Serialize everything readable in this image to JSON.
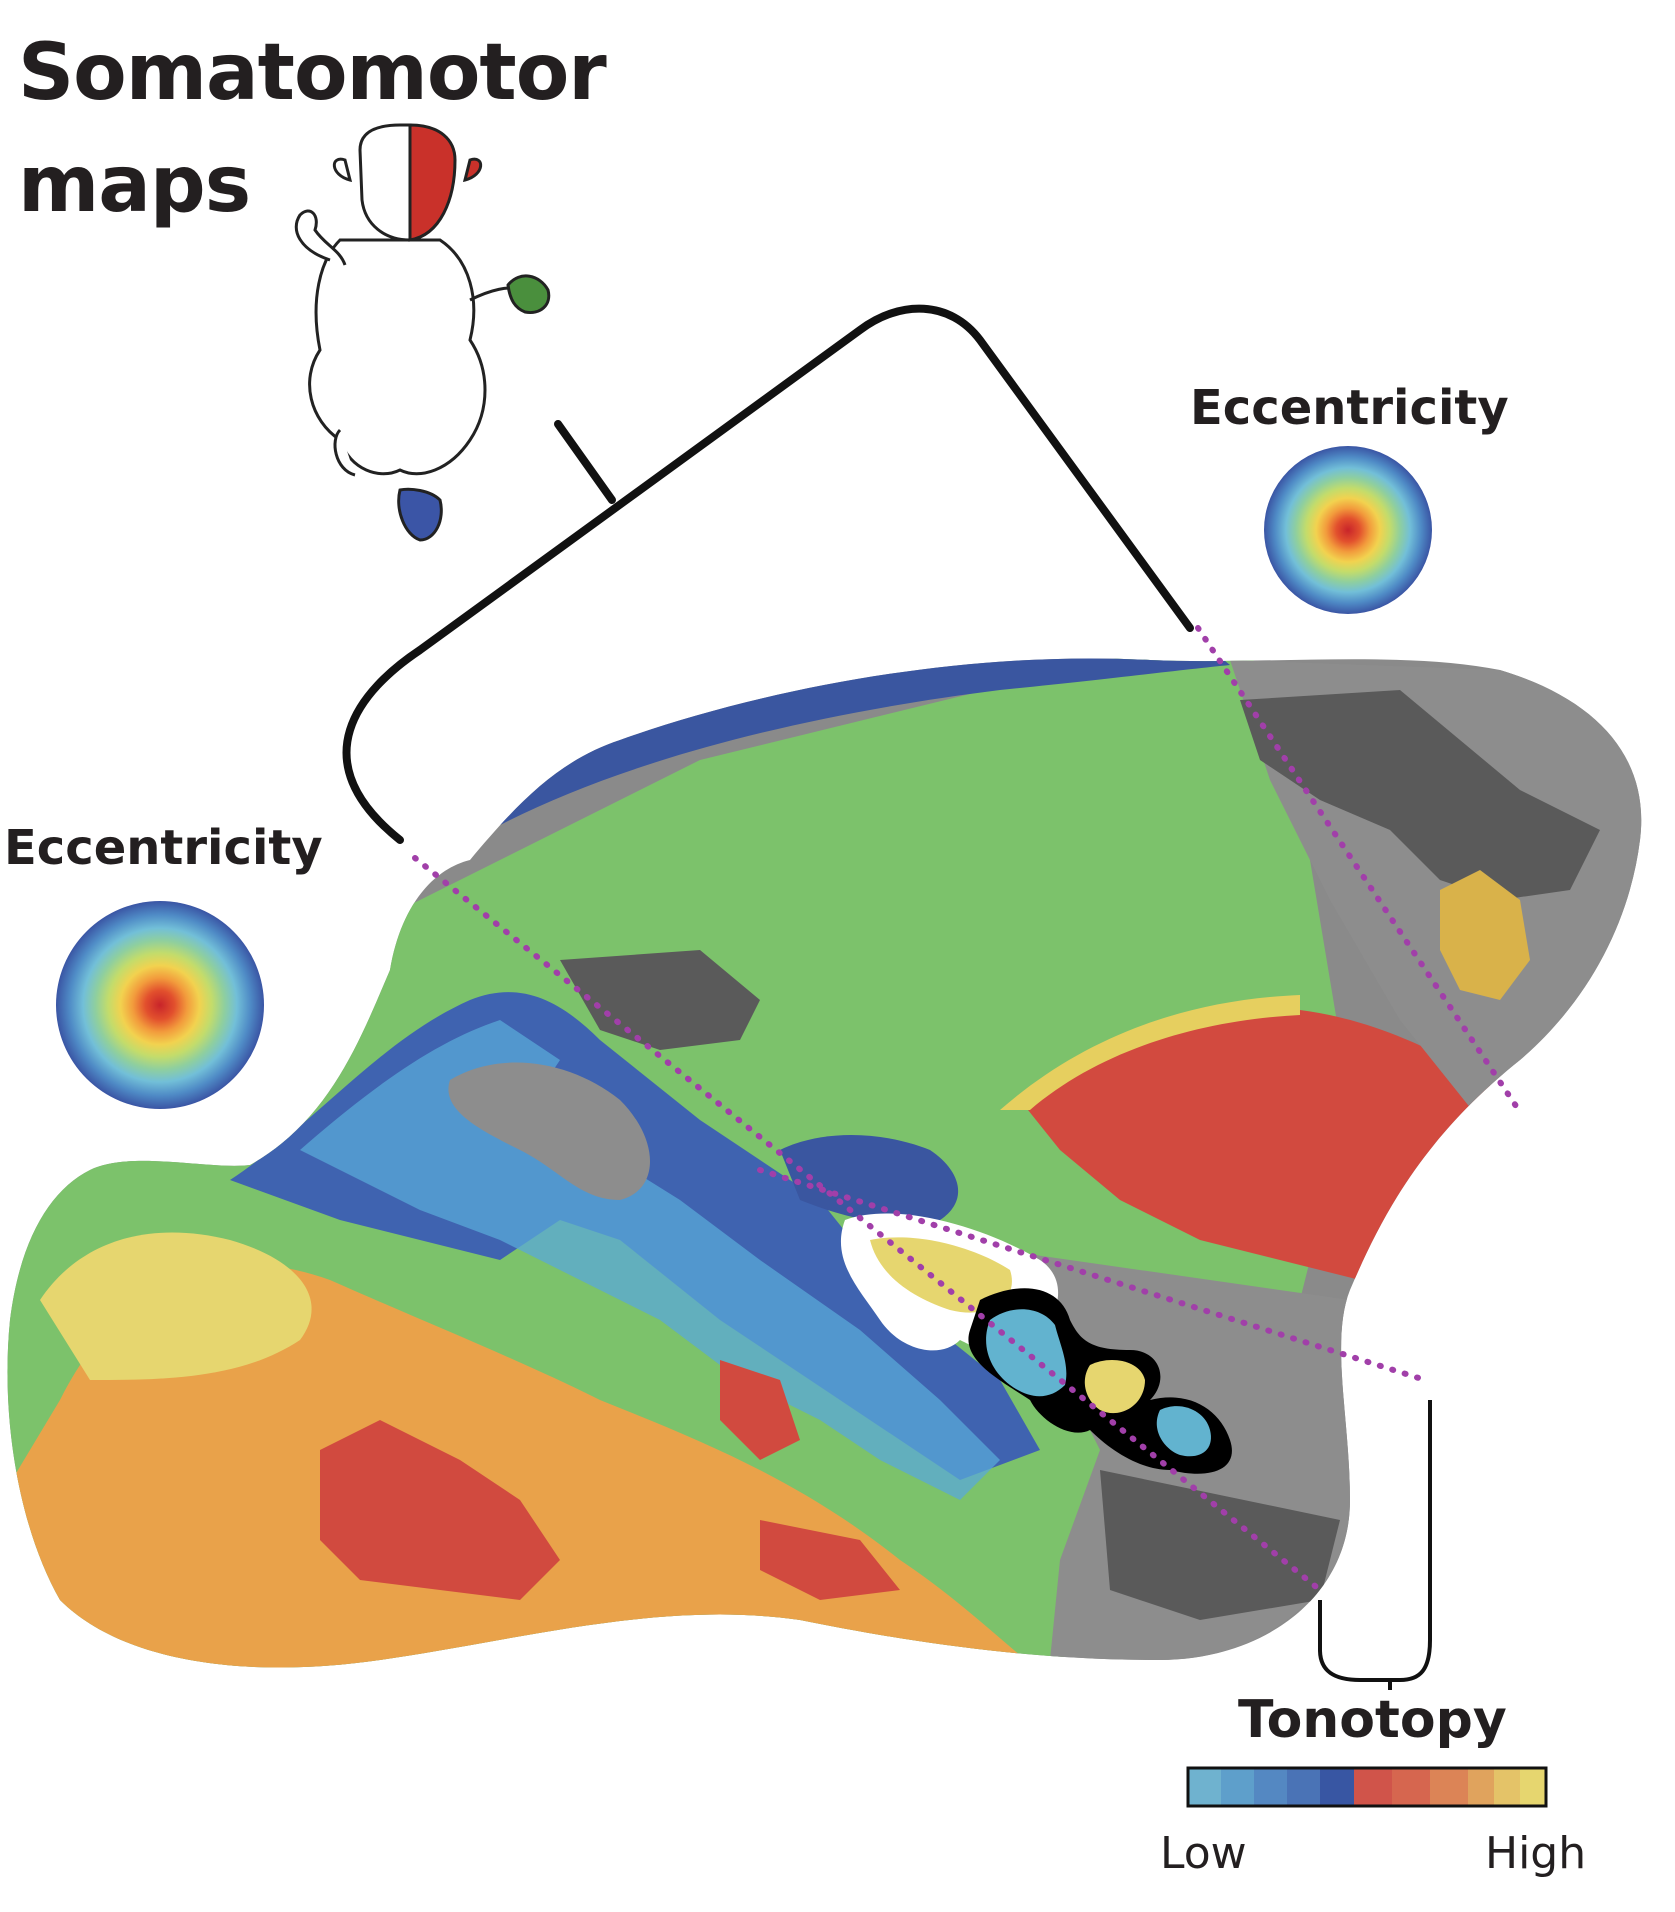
{
  "figure": {
    "title_line1": "Somatomotor",
    "title_line2": "maps",
    "eccentricity_right_label": "Eccentricity",
    "eccentricity_left_label": "Eccentricity",
    "tonotopy_label": "Tonotopy",
    "colorbar": {
      "low_label": "Low",
      "high_label": "High",
      "colors": [
        "#6fb2cf",
        "#5e9fcb",
        "#5488c2",
        "#4a73b6",
        "#3856a3",
        "#d0544a",
        "#d6664f",
        "#dc8456",
        "#e0a35d",
        "#e4c368",
        "#e6d66f"
      ]
    },
    "eccentricity_colors": [
      "#3a55a4",
      "#4f8bc6",
      "#72bfd8",
      "#8fcf9e",
      "#c3dc6b",
      "#f2d24f",
      "#f29b3c",
      "#e2502d",
      "#cc2a26"
    ],
    "body_part_colors": {
      "face": "#c9312a",
      "hand": "#4a8f3d",
      "foot": "#3b55a6"
    },
    "boundary_color": "#a13fa9"
  }
}
